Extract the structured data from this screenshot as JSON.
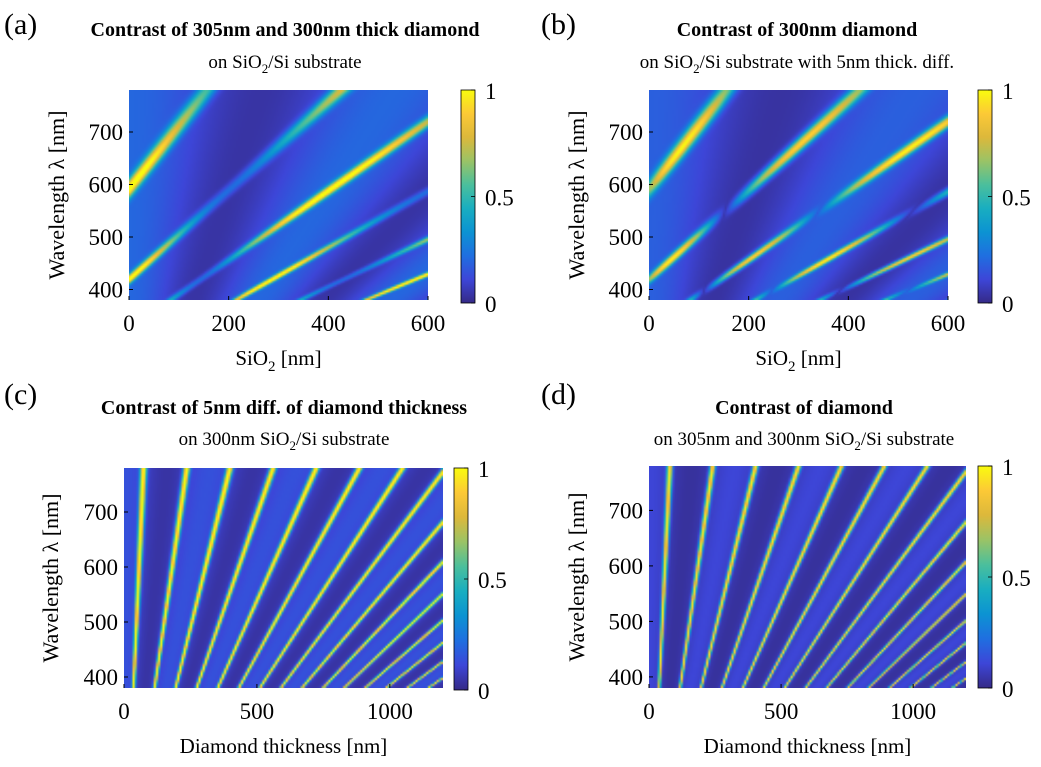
{
  "colormap": {
    "name": "parula",
    "stops": [
      "#352a87",
      "#3d46d8",
      "#1f6fe0",
      "#0c93d2",
      "#19aec0",
      "#4bbf9c",
      "#9ac366",
      "#dcb83b",
      "#fcc936",
      "#f9fb0e"
    ]
  },
  "chart_data": [
    {
      "type": "heatmap",
      "panel_label": "(a)",
      "title": "Contrast of 305nm and 300nm thick diamond",
      "subtitle_prefix": "on SiO",
      "subtitle_sub": "2",
      "subtitle_suffix": "/Si substrate",
      "xlabel_prefix": "SiO",
      "xlabel_sub": "2",
      "xlabel_suffix": " [nm]",
      "ylabel": "Wavelength λ [nm]",
      "xlim": [
        0,
        600
      ],
      "ylim": [
        380,
        780
      ],
      "xticks": [
        0,
        200,
        400,
        600
      ],
      "xtick_labels": [
        "0",
        "200",
        "400",
        "600"
      ],
      "yticks": [
        400,
        500,
        600,
        700
      ],
      "ytick_labels": [
        "400",
        "500",
        "600",
        "700"
      ],
      "colorbar_ticks": [
        0,
        0.5,
        1
      ],
      "colorbar_labels": [
        "0",
        "0.5",
        "1"
      ],
      "clim": [
        0,
        1
      ],
      "model": {
        "vary": "sio2",
        "diamond_thickness": 300,
        "sio2_thickness": 300
      }
    },
    {
      "type": "heatmap",
      "panel_label": "(b)",
      "title": "Contrast of 300nm  diamond",
      "subtitle_prefix": "on SiO",
      "subtitle_sub": "2",
      "subtitle_suffix": "/Si substrate with 5nm thick. diff.",
      "xlabel_prefix": "SiO",
      "xlabel_sub": "2",
      "xlabel_suffix": " [nm]",
      "ylabel": "Wavelength λ [nm]",
      "xlim": [
        0,
        600
      ],
      "ylim": [
        380,
        780
      ],
      "xticks": [
        0,
        200,
        400,
        600
      ],
      "xtick_labels": [
        "0",
        "200",
        "400",
        "600"
      ],
      "yticks": [
        400,
        500,
        600,
        700
      ],
      "ytick_labels": [
        "400",
        "500",
        "600",
        "700"
      ],
      "colorbar_ticks": [
        0,
        0.5,
        1
      ],
      "colorbar_labels": [
        "0",
        "0.5",
        "1"
      ],
      "clim": [
        0,
        1
      ],
      "model": {
        "vary": "sio2b",
        "diamond_thickness": 300,
        "sio2_thickness": 300
      }
    },
    {
      "type": "heatmap",
      "panel_label": "(c)",
      "title": "Contrast of 5nm diff. of diamond thickness",
      "subtitle_prefix": "on 300nm SiO",
      "subtitle_sub": "2",
      "subtitle_suffix": "/Si substrate",
      "xlabel_prefix": "Diamond thickness [nm]",
      "xlabel_sub": "",
      "xlabel_suffix": "",
      "ylabel": "Wavelength λ [nm]",
      "xlim": [
        0,
        1200
      ],
      "ylim": [
        380,
        780
      ],
      "xticks": [
        0,
        500,
        1000
      ],
      "xtick_labels": [
        "0",
        "500",
        "1000"
      ],
      "yticks": [
        400,
        500,
        600,
        700
      ],
      "ytick_labels": [
        "400",
        "500",
        "600",
        "700"
      ],
      "colorbar_ticks": [
        0,
        0.5,
        1
      ],
      "colorbar_labels": [
        "0",
        "0.5",
        "1"
      ],
      "clim": [
        0,
        1
      ],
      "model": {
        "vary": "diamond",
        "diamond_thickness": 300,
        "sio2_thickness": 300
      }
    },
    {
      "type": "heatmap",
      "panel_label": "(d)",
      "title": "Contrast of diamond",
      "subtitle_prefix": "on 305nm and 300nm SiO",
      "subtitle_sub": "2",
      "subtitle_suffix": "/Si substrate",
      "xlabel_prefix": "Diamond thickness [nm]",
      "xlabel_sub": "",
      "xlabel_suffix": "",
      "ylabel": "Wavelength λ [nm]",
      "xlim": [
        0,
        1200
      ],
      "ylim": [
        380,
        780
      ],
      "xticks": [
        0,
        500,
        1000
      ],
      "xtick_labels": [
        "0",
        "500",
        "1000"
      ],
      "yticks": [
        400,
        500,
        600,
        700
      ],
      "ytick_labels": [
        "400",
        "500",
        "600",
        "700"
      ],
      "colorbar_ticks": [
        0,
        0.5,
        1
      ],
      "colorbar_labels": [
        "0",
        "0.5",
        "1"
      ],
      "clim": [
        0,
        1
      ],
      "model": {
        "vary": "diamondb",
        "diamond_thickness": 300,
        "sio2_thickness": 300
      }
    }
  ]
}
